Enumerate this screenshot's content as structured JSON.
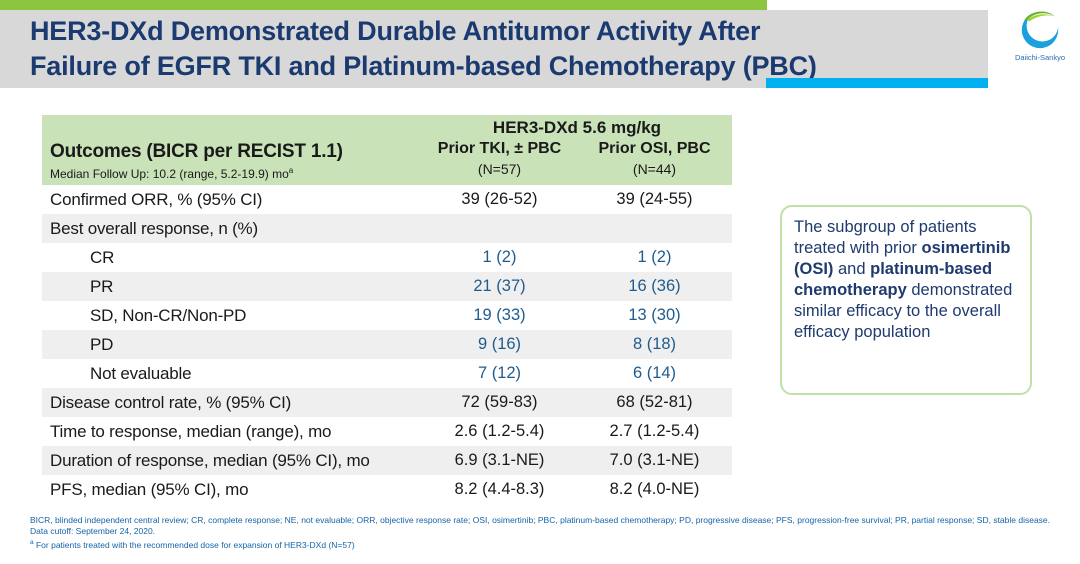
{
  "slide": {
    "title_line1": "HER3-DXd Demonstrated Durable Antitumor Activity After",
    "title_line2": "Failure of EGFR TKI and Platinum-based Chemotherapy (PBC)",
    "logo_text": "Daiichi-Sankyo"
  },
  "table": {
    "group_header": "HER3-DXd 5.6 mg/kg",
    "outcomes_header": "Outcomes (BICR per RECIST 1.1)",
    "outcomes_subheader": "Median Follow Up: 10.2 (range, 5.2-19.9) mo",
    "outcomes_subheader_sup": "a",
    "col1_header": "Prior TKI, ± PBC",
    "col1_n": "(N=57)",
    "col2_header": "Prior OSI, PBC",
    "col2_n": "(N=44)",
    "rows": [
      {
        "label": "Confirmed ORR, % (95% CI)",
        "v1": "39 (26-52)",
        "v2": "39 (24-55)",
        "indent": false,
        "blue": false,
        "shaded": false
      },
      {
        "label": "Best overall response, n (%)",
        "v1": "",
        "v2": "",
        "indent": false,
        "blue": false,
        "shaded": true
      },
      {
        "label": "CR",
        "v1": "1 (2)",
        "v2": "1 (2)",
        "indent": true,
        "blue": true,
        "shaded": false
      },
      {
        "label": "PR",
        "v1": "21 (37)",
        "v2": "16 (36)",
        "indent": true,
        "blue": true,
        "shaded": true
      },
      {
        "label": "SD, Non-CR/Non-PD",
        "v1": "19 (33)",
        "v2": "13 (30)",
        "indent": true,
        "blue": true,
        "shaded": false
      },
      {
        "label": "PD",
        "v1": "9 (16)",
        "v2": "8 (18)",
        "indent": true,
        "blue": true,
        "shaded": true
      },
      {
        "label": "Not evaluable",
        "v1": "7 (12)",
        "v2": "6 (14)",
        "indent": true,
        "blue": true,
        "shaded": false
      },
      {
        "label": "Disease control rate, % (95% CI)",
        "v1": "72 (59-83)",
        "v2": "68 (52-81)",
        "indent": false,
        "blue": false,
        "shaded": true
      },
      {
        "label": "Time to response, median (range), mo",
        "v1": "2.6 (1.2-5.4)",
        "v2": "2.7 (1.2-5.4)",
        "indent": false,
        "blue": false,
        "shaded": false
      },
      {
        "label": "Duration of response, median (95% CI), mo",
        "v1": "6.9 (3.1-NE)",
        "v2": "7.0 (3.1-NE)",
        "indent": false,
        "blue": false,
        "shaded": true
      },
      {
        "label": "PFS, median (95% CI), mo",
        "v1": "8.2 (4.4-8.3)",
        "v2": "8.2 (4.0-NE)",
        "indent": false,
        "blue": false,
        "shaded": false
      }
    ]
  },
  "callout": {
    "segments": [
      {
        "text": "The subgroup of patients treated with prior ",
        "bold": false
      },
      {
        "text": "osimertinib (OSI)",
        "bold": true
      },
      {
        "text": " and ",
        "bold": false
      },
      {
        "text": "platinum-based chemotherapy",
        "bold": true
      },
      {
        "text": " demonstrated similar efficacy to the overall efficacy population",
        "bold": false
      }
    ]
  },
  "footnotes": {
    "line1": "BICR, blinded independent central review; CR, complete response; NE, not evaluable; ORR, objective response rate; OSI, osimertinib;  PBC, platinum-based chemotherapy; PD, progressive disease; PFS, progression-free survival; PR, partial response; SD, stable disease.",
    "line2": "Data cutoff: September 24, 2020.",
    "line3_sup": "a",
    "line3": " For patients treated with the recommended dose for expansion of HER3-DXd (N=57)"
  },
  "colors": {
    "accent_green": "#8cc63e",
    "accent_cyan": "#00b0f0",
    "title_navy": "#1a3a70",
    "table_header_green": "#c9e2b8",
    "row_shade": "#efefef",
    "value_blue": "#1f5c8d",
    "footnote_blue": "#1464a8",
    "callout_border_green": "#bfe0a8"
  }
}
